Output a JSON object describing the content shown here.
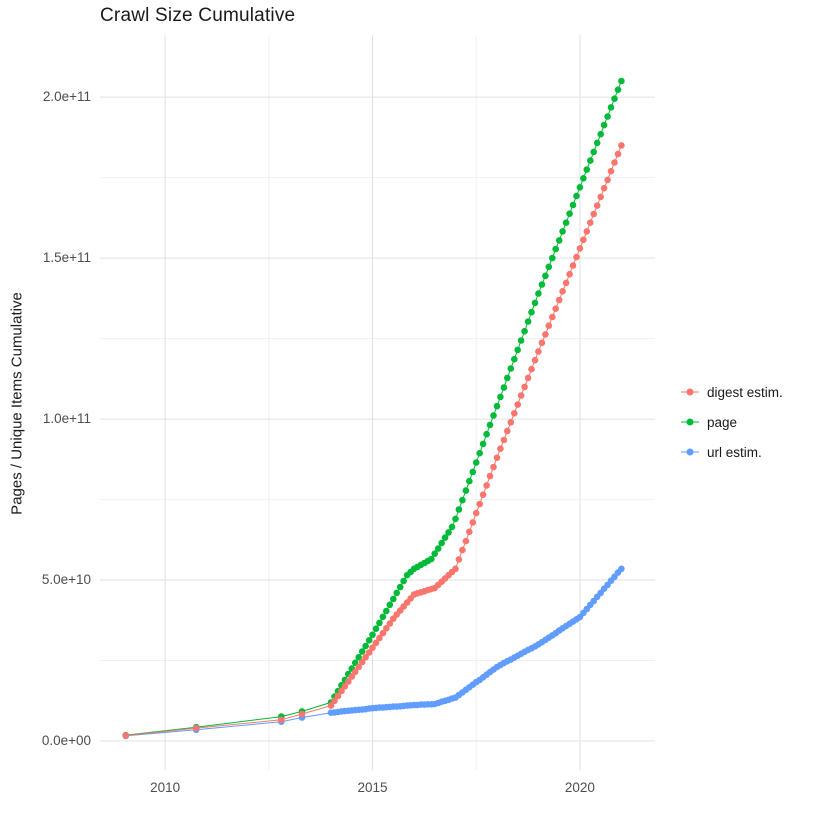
{
  "title": "Crawl Size Cumulative",
  "y_axis_label": "Pages / Unique Items Cumulative",
  "legend": {
    "items": [
      {
        "label": "digest estim.",
        "color": "#F8766D"
      },
      {
        "label": "page",
        "color": "#00BA38"
      },
      {
        "label": "url estim.",
        "color": "#619CFF"
      }
    ]
  },
  "chart_data": {
    "type": "line",
    "markers": true,
    "title": "Crawl Size Cumulative",
    "xlabel": "",
    "ylabel": "Pages / Unique Items Cumulative",
    "xlim": [
      2008.43,
      2021.81
    ],
    "ylim": [
      -9000000000.0,
      219300000000.0
    ],
    "grid": true,
    "legend_position": "right",
    "x_ticks": [
      {
        "value": 2010,
        "label": "2010"
      },
      {
        "value": 2015,
        "label": "2015"
      },
      {
        "value": 2020,
        "label": "2020"
      }
    ],
    "y_ticks": [
      {
        "value": 0,
        "label": "0.0e+00"
      },
      {
        "value": 50000000000.0,
        "label": "5.0e+10"
      },
      {
        "value": 100000000000.0,
        "label": "1.0e+11"
      },
      {
        "value": 150000000000.0,
        "label": "1.5e+11"
      },
      {
        "value": 200000000000.0,
        "label": "2.0e+11"
      }
    ],
    "x_minor": [
      2012.5,
      2017.5
    ],
    "y_minor": [
      25000000000.0,
      75000000000.0,
      125000000000.0,
      175000000000.0
    ],
    "x": [
      2009.05,
      2010.75,
      2012.8,
      2013.3,
      2014.0,
      2014.083,
      2014.167,
      2014.25,
      2014.333,
      2014.417,
      2014.5,
      2014.583,
      2014.667,
      2014.75,
      2014.833,
      2014.917,
      2015.0,
      2015.083,
      2015.167,
      2015.25,
      2015.333,
      2015.417,
      2015.5,
      2015.583,
      2015.667,
      2015.75,
      2015.833,
      2015.917,
      2016.0,
      2016.083,
      2016.167,
      2016.25,
      2016.333,
      2016.417,
      2016.5,
      2016.583,
      2016.667,
      2016.75,
      2016.833,
      2016.917,
      2017.0,
      2017.083,
      2017.167,
      2017.25,
      2017.333,
      2017.417,
      2017.5,
      2017.583,
      2017.667,
      2017.75,
      2017.833,
      2017.917,
      2018.0,
      2018.083,
      2018.167,
      2018.25,
      2018.333,
      2018.417,
      2018.5,
      2018.583,
      2018.667,
      2018.75,
      2018.833,
      2018.917,
      2019.0,
      2019.083,
      2019.167,
      2019.25,
      2019.333,
      2019.417,
      2019.5,
      2019.583,
      2019.667,
      2019.75,
      2019.833,
      2019.917,
      2020.0,
      2020.083,
      2020.167,
      2020.25,
      2020.333,
      2020.417,
      2020.5,
      2020.583,
      2020.667,
      2020.75,
      2020.833,
      2020.917,
      2021.0
    ],
    "series": [
      {
        "name": "digest estim.",
        "color": "#F8766D",
        "values": [
          1700000000.0,
          4000000000.0,
          6600000000.0,
          8400000000.0,
          11000000000.0,
          12500000000.0,
          14000000000.0,
          15500000000.0,
          17000000000.0,
          18500000000.0,
          20000000000.0,
          21500000000.0,
          23000000000.0,
          24500000000.0,
          26000000000.0,
          27500000000.0,
          29000000000.0,
          30500000000.0,
          32000000000.0,
          33500000000.0,
          35000000000.0,
          36500000000.0,
          38000000000.0,
          39300000000.0,
          40500000000.0,
          41800000000.0,
          43000000000.0,
          44300000000.0,
          45500000000.0,
          45900000000.0,
          46200000000.0,
          46500000000.0,
          46900000000.0,
          47200000000.0,
          47500000000.0,
          48500000000.0,
          49500000000.0,
          50500000000.0,
          51500000000.0,
          52500000000.0,
          53500000000.0,
          56400000000.0,
          59300000000.0,
          62100000000.0,
          65000000000.0,
          67900000000.0,
          70800000000.0,
          73600000000.0,
          76500000000.0,
          79400000000.0,
          82300000000.0,
          85100000000.0,
          88000000000.0,
          90800000000.0,
          93500000000.0,
          96300000000.0,
          99000000000.0,
          101800000000.0,
          104500000000.0,
          107300000000.0,
          110000000000.0,
          112800000000.0,
          115500000000.0,
          118300000000.0,
          121000000000.0,
          123700000000.0,
          126300000000.0,
          129000000000.0,
          131700000000.0,
          134300000000.0,
          137000000000.0,
          139700000000.0,
          142300000000.0,
          145000000000.0,
          147700000000.0,
          150300000000.0,
          153000000000.0,
          155700000000.0,
          158300000000.0,
          161000000000.0,
          163700000000.0,
          166300000000.0,
          169000000000.0,
          171700000000.0,
          174300000000.0,
          177000000000.0,
          179700000000.0,
          182300000000.0,
          185000000000.0
        ]
      },
      {
        "name": "page",
        "color": "#00BA38",
        "values": [
          1800000000.0,
          4300000000.0,
          7600000000.0,
          9200000000.0,
          12000000000.0,
          13800000000.0,
          15500000000.0,
          17300000000.0,
          19000000000.0,
          20800000000.0,
          22500000000.0,
          24300000000.0,
          26000000000.0,
          27800000000.0,
          29500000000.0,
          31300000000.0,
          33000000000.0,
          34900000000.0,
          36700000000.0,
          38600000000.0,
          40400000000.0,
          42300000000.0,
          44100000000.0,
          46000000000.0,
          47800000000.0,
          49700000000.0,
          51500000000.0,
          52500000000.0,
          53500000000.0,
          54100000000.0,
          54700000000.0,
          55300000000.0,
          55900000000.0,
          56500000000.0,
          58200000000.0,
          59800000000.0,
          61500000000.0,
          63200000000.0,
          64800000000.0,
          66500000000.0,
          69000000000.0,
          71900000000.0,
          74800000000.0,
          77800000000.0,
          80700000000.0,
          83600000000.0,
          86500000000.0,
          89400000000.0,
          92300000000.0,
          95300000000.0,
          98200000000.0,
          101100000000.0,
          104000000000.0,
          106900000000.0,
          109800000000.0,
          112800000000.0,
          115700000000.0,
          118600000000.0,
          121500000000.0,
          124400000000.0,
          127300000000.0,
          130300000000.0,
          133200000000.0,
          136100000000.0,
          139000000000.0,
          141800000000.0,
          144500000000.0,
          147300000000.0,
          150000000000.0,
          152800000000.0,
          155500000000.0,
          158300000000.0,
          161000000000.0,
          163800000000.0,
          166500000000.0,
          169300000000.0,
          172000000000.0,
          174800000000.0,
          177500000000.0,
          180300000000.0,
          183000000000.0,
          185800000000.0,
          188500000000.0,
          191300000000.0,
          194000000000.0,
          196800000000.0,
          199500000000.0,
          202300000000.0,
          205000000000.0
        ]
      },
      {
        "name": "url estim.",
        "color": "#619CFF",
        "values": [
          1600000000.0,
          3500000000.0,
          6000000000.0,
          7300000000.0,
          8800000000.0,
          8900000000.0,
          9000000000.0,
          9200000000.0,
          9300000000.0,
          9400000000.0,
          9500000000.0,
          9600000000.0,
          9700000000.0,
          9800000000.0,
          9900000000.0,
          10100000000.0,
          10200000000.0,
          10300000000.0,
          10400000000.0,
          10400000000.0,
          10500000000.0,
          10600000000.0,
          10700000000.0,
          10700000000.0,
          10800000000.0,
          10900000000.0,
          11000000000.0,
          11100000000.0,
          11200000000.0,
          11200000000.0,
          11300000000.0,
          11300000000.0,
          11400000000.0,
          11400000000.0,
          11500000000.0,
          11800000000.0,
          12200000000.0,
          12500000000.0,
          12800000000.0,
          13200000000.0,
          13500000000.0,
          14300000000.0,
          15100000000.0,
          15900000000.0,
          16700000000.0,
          17500000000.0,
          18300000000.0,
          19000000000.0,
          19800000000.0,
          20600000000.0,
          21400000000.0,
          22200000000.0,
          23000000000.0,
          23600000000.0,
          24200000000.0,
          24800000000.0,
          25300000000.0,
          25900000000.0,
          26500000000.0,
          27100000000.0,
          27700000000.0,
          28300000000.0,
          28800000000.0,
          29400000000.0,
          30000000000.0,
          30700000000.0,
          31400000000.0,
          32100000000.0,
          32800000000.0,
          33500000000.0,
          34300000000.0,
          35000000000.0,
          35700000000.0,
          36400000000.0,
          37100000000.0,
          37800000000.0,
          38500000000.0,
          39800000000.0,
          41000000000.0,
          42300000000.0,
          43500000000.0,
          44800000000.0,
          46000000000.0,
          47300000000.0,
          48500000000.0,
          49800000000.0,
          51000000000.0,
          52300000000.0,
          53500000000.0
        ]
      }
    ]
  }
}
